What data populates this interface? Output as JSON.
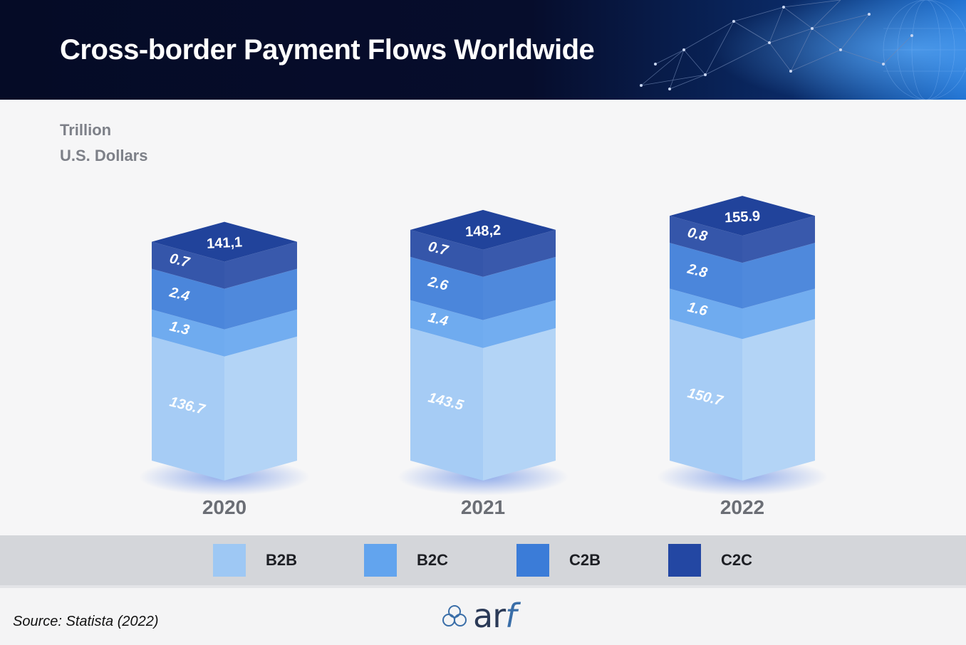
{
  "header": {
    "title": "Cross-border Payment Flows Worldwide"
  },
  "unit": {
    "line1": "Trillion",
    "line2": "U.S. Dollars"
  },
  "colors": {
    "B2B": "#9ec8f4",
    "B2C": "#62a4ee",
    "C2B": "#3b7cd8",
    "C2C": "#2347a3"
  },
  "chart_data": {
    "type": "bar",
    "stacked": true,
    "categories": [
      "2020",
      "2021",
      "2022"
    ],
    "totals": [
      "141,1",
      "148,2",
      "155.9"
    ],
    "series": [
      {
        "name": "B2B",
        "values": [
          136.7,
          143.5,
          150.7
        ],
        "labels": [
          "136.7",
          "143.5",
          "150.7"
        ]
      },
      {
        "name": "B2C",
        "values": [
          1.3,
          1.4,
          1.6
        ],
        "labels": [
          "1.3",
          "1.4",
          "1.6"
        ]
      },
      {
        "name": "C2B",
        "values": [
          2.4,
          2.6,
          2.8
        ],
        "labels": [
          "2.4",
          "2.6",
          "2.8"
        ]
      },
      {
        "name": "C2C",
        "values": [
          0.7,
          0.7,
          0.8
        ],
        "labels": [
          "0.7",
          "0.7",
          "0.8"
        ]
      }
    ],
    "ylabel": "Trillion U.S. Dollars",
    "legend_position": "bottom"
  },
  "legend": [
    {
      "label": "B2B",
      "color": "#9ec8f4"
    },
    {
      "label": "B2C",
      "color": "#62a4ee"
    },
    {
      "label": "C2B",
      "color": "#3b7cd8"
    },
    {
      "label": "C2C",
      "color": "#2347a3"
    }
  ],
  "footer": {
    "source": "Source: Statista (2022)",
    "logo_text": "ar",
    "logo_text_f": "f"
  }
}
